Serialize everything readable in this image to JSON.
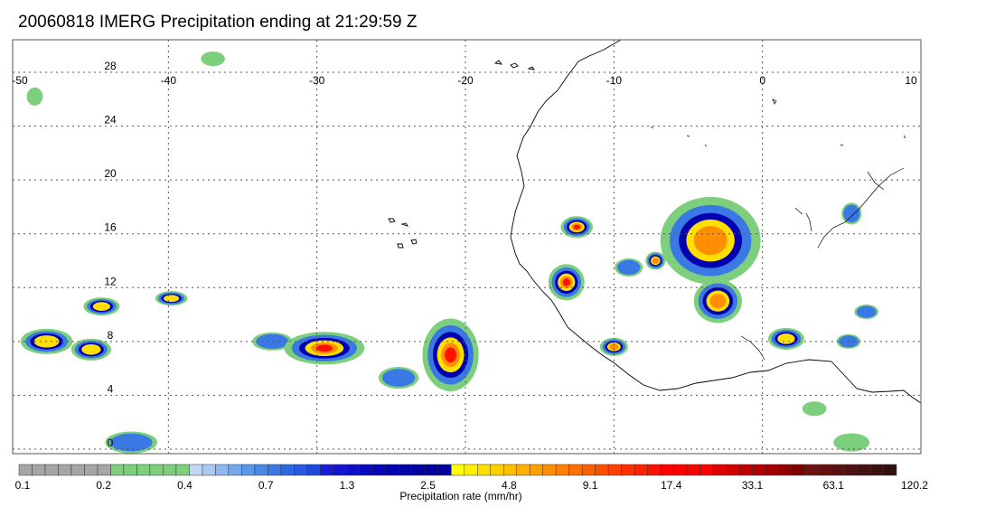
{
  "title": "20060818 IMERG Precipitation ending at 21:29:59 Z",
  "map": {
    "lon_range": [
      -50,
      10
    ],
    "lat_range": [
      -0.5,
      30
    ],
    "lon_ticks": [
      "-50",
      "-40",
      "-30",
      "-20",
      "-10",
      "0",
      "10"
    ],
    "lat_ticks": [
      "28",
      "24",
      "20",
      "16",
      "12",
      "8",
      "4",
      "0"
    ],
    "gridlines": "dotted",
    "grid_color": "#555555"
  },
  "colorbar": {
    "label": "Precipitation rate (mm/hr)",
    "tick_labels": [
      "0.1",
      "0.2",
      "0.4",
      "0.7",
      "1.3",
      "2.5",
      "4.8",
      "9.1",
      "17.4",
      "33.1",
      "63.1",
      "120.2"
    ],
    "colors": [
      "#a6a6a6",
      "#a6a6a6",
      "#a6a6a6",
      "#a6a6a6",
      "#a6a6a6",
      "#a6a6a6",
      "#a6a6a6",
      "#7dcf7d",
      "#7dcf7d",
      "#7dcf7d",
      "#7dcf7d",
      "#7dcf7d",
      "#7dcf7d",
      "#c4d8f5",
      "#aac8f2",
      "#8fb8ef",
      "#75a8ec",
      "#5a98e9",
      "#4a88e6",
      "#3a78e3",
      "#2a68e0",
      "#2a58e0",
      "#1e48dd",
      "#1a1ad8",
      "#1414d0",
      "#0e0ec8",
      "#0808c0",
      "#0404b8",
      "#0000b0",
      "#0000a8",
      "#0000a0",
      "#0000a0",
      "#0000a0",
      "#ffff00",
      "#ffef00",
      "#ffdf00",
      "#ffcf00",
      "#ffbf00",
      "#ffaf00",
      "#ff9f00",
      "#ff8f00",
      "#ff8000",
      "#ff7000",
      "#ff6000",
      "#ff5000",
      "#ff4000",
      "#ff3000",
      "#ff2000",
      "#ff1000",
      "#ff0000",
      "#ff0000",
      "#ff0000",
      "#ff0000",
      "#e00000",
      "#d00000",
      "#c00000",
      "#b00000",
      "#a00000",
      "#900000",
      "#800000",
      "#701010",
      "#651010",
      "#5a1010",
      "#501010",
      "#461010",
      "#3c1010",
      "#321010"
    ]
  },
  "precip_cells": [
    {
      "lon": -48.2,
      "lat": 8.0,
      "rx": 1.3,
      "ry": 0.7,
      "level": "yellow"
    },
    {
      "lon": -45.2,
      "lat": 7.4,
      "rx": 1.0,
      "ry": 0.6,
      "level": "yellow"
    },
    {
      "lon": -44.5,
      "lat": 10.6,
      "rx": 0.9,
      "ry": 0.5,
      "level": "yellow"
    },
    {
      "lon": -39.8,
      "lat": 11.2,
      "rx": 0.8,
      "ry": 0.4,
      "level": "yellow"
    },
    {
      "lon": -33.0,
      "lat": 8.0,
      "rx": 1.0,
      "ry": 0.5,
      "level": "blue"
    },
    {
      "lon": -29.5,
      "lat": 7.5,
      "rx": 2.0,
      "ry": 0.9,
      "level": "red"
    },
    {
      "lon": -21.0,
      "lat": 7.0,
      "rx": 1.4,
      "ry": 2.0,
      "level": "red"
    },
    {
      "lon": -12.5,
      "lat": 16.5,
      "rx": 0.8,
      "ry": 0.6,
      "level": "red"
    },
    {
      "lon": -13.2,
      "lat": 12.4,
      "rx": 0.9,
      "ry": 1.0,
      "level": "red"
    },
    {
      "lon": -10.0,
      "lat": 7.6,
      "rx": 0.7,
      "ry": 0.5,
      "level": "orange"
    },
    {
      "lon": -3.5,
      "lat": 15.5,
      "rx": 2.5,
      "ry": 2.4,
      "level": "orange"
    },
    {
      "lon": -3.0,
      "lat": 11.0,
      "rx": 1.2,
      "ry": 1.2,
      "level": "orange"
    },
    {
      "lon": 1.6,
      "lat": 8.2,
      "rx": 0.9,
      "ry": 0.6,
      "level": "yellow"
    },
    {
      "lon": 5.8,
      "lat": 8.0,
      "rx": 0.6,
      "ry": 0.4,
      "level": "blue"
    },
    {
      "lon": 7.0,
      "lat": 10.2,
      "rx": 0.6,
      "ry": 0.4,
      "level": "blue"
    },
    {
      "lon": -42.5,
      "lat": 0.5,
      "rx": 1.3,
      "ry": 0.6,
      "level": "blue"
    },
    {
      "lon": 6.0,
      "lat": 0.5,
      "rx": 0.9,
      "ry": 0.5,
      "level": "green"
    },
    {
      "lon": 3.5,
      "lat": 3.0,
      "rx": 0.6,
      "ry": 0.4,
      "level": "green"
    },
    {
      "lon": -37.0,
      "lat": 29.0,
      "rx": 0.6,
      "ry": 0.4,
      "level": "green"
    },
    {
      "lon": 6.0,
      "lat": 17.5,
      "rx": 0.5,
      "ry": 0.6,
      "level": "blue"
    },
    {
      "lon": -24.5,
      "lat": 5.3,
      "rx": 1.0,
      "ry": 0.6,
      "level": "blue"
    },
    {
      "lon": -9.0,
      "lat": 13.5,
      "rx": 0.7,
      "ry": 0.5,
      "level": "blue"
    },
    {
      "lon": -7.2,
      "lat": 14.0,
      "rx": 0.5,
      "ry": 0.5,
      "level": "orange"
    },
    {
      "lon": -49.0,
      "lat": 26.2,
      "rx": 0.4,
      "ry": 0.5,
      "level": "green"
    }
  ],
  "level_colors": {
    "green": "#7dcf7d",
    "blue": "#3a78e3",
    "darkblue": "#0000b0",
    "yellow": "#ffdf00",
    "orange": "#ff8f00",
    "red": "#ff1000"
  }
}
